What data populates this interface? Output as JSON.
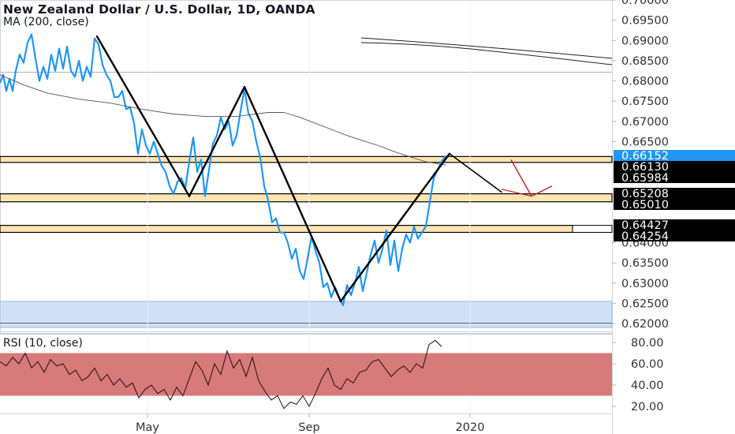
{
  "header": {
    "title": "New Zealand Dollar / U.S. Dollar, 1D, OANDA",
    "subtitle": "MA (200, close)"
  },
  "rsi": {
    "label": "RSI (10, close)"
  },
  "colors": {
    "price_line": "#2196f3",
    "ma_line": "#555555",
    "drawing_line": "#000000",
    "projection_red": "#b22222",
    "sr_zone_fill": "#ffe5b4",
    "demand_zone_fill": "#cfe0f7",
    "rsi_band_fill": "#d67a7a",
    "current_price_bg": "#2196f3",
    "label_black_bg": "#000000"
  },
  "chart_data": [
    {
      "type": "line",
      "panel": "price",
      "title": "New Zealand Dollar / U.S. Dollar, 1D, OANDA",
      "ylim": [
        0.6185,
        0.7005
      ],
      "y_ticks": [
        "0.70000",
        "0.69500",
        "0.69000",
        "0.68500",
        "0.68000",
        "0.67500",
        "0.67000",
        "0.66500",
        "0.64000",
        "0.63500",
        "0.63000",
        "0.62500",
        "0.62000"
      ],
      "x_ticks": [
        "May",
        "Sep",
        "2020"
      ],
      "series": [
        {
          "key": "price",
          "x": [
            0,
            4,
            8,
            12,
            16,
            20,
            25,
            30,
            35,
            40,
            45,
            50,
            55,
            60,
            65,
            70,
            75,
            80,
            85,
            90,
            95,
            100,
            105,
            110,
            115,
            120,
            125,
            130,
            135,
            140,
            145,
            150,
            155,
            160,
            165,
            170,
            175,
            180,
            185,
            190,
            195,
            200,
            205,
            210,
            215,
            220,
            225,
            230,
            235,
            240,
            245,
            250,
            255,
            260,
            265,
            270,
            275,
            280,
            285,
            290,
            295,
            300,
            305,
            310,
            315,
            320,
            325,
            330,
            335,
            340,
            345,
            350,
            355,
            360,
            365,
            370,
            375,
            380,
            385,
            390,
            395,
            400,
            405,
            410,
            415,
            420,
            425,
            430,
            435,
            440,
            445,
            450,
            455,
            460,
            465,
            470,
            475,
            480,
            485,
            490,
            495,
            500,
            505,
            510,
            515,
            520,
            525,
            530,
            535,
            540,
            545,
            550,
            555,
            560,
            565
          ],
          "values": [
            0.6795,
            0.6815,
            0.6775,
            0.6805,
            0.6775,
            0.6825,
            0.6865,
            0.6845,
            0.6895,
            0.6915,
            0.6855,
            0.68,
            0.6835,
            0.6805,
            0.6865,
            0.6825,
            0.688,
            0.683,
            0.6885,
            0.6825,
            0.681,
            0.685,
            0.68,
            0.6835,
            0.681,
            0.6905,
            0.689,
            0.684,
            0.6815,
            0.68,
            0.676,
            0.676,
            0.6775,
            0.673,
            0.6735,
            0.6695,
            0.662,
            0.668,
            0.664,
            0.662,
            0.665,
            0.662,
            0.659,
            0.6575,
            0.654,
            0.652,
            0.655,
            0.656,
            0.6535,
            0.66,
            0.666,
            0.6575,
            0.6605,
            0.6515,
            0.658,
            0.6645,
            0.6665,
            0.671,
            0.668,
            0.67,
            0.664,
            0.6665,
            0.6725,
            0.678,
            0.672,
            0.67,
            0.665,
            0.661,
            0.654,
            0.6505,
            0.645,
            0.646,
            0.6425,
            0.6425,
            0.64,
            0.636,
            0.6385,
            0.633,
            0.631,
            0.636,
            0.6415,
            0.638,
            0.635,
            0.629,
            0.63,
            0.6265,
            0.629,
            0.6265,
            0.6245,
            0.6295,
            0.627,
            0.63,
            0.634,
            0.628,
            0.6325,
            0.637,
            0.6405,
            0.635,
            0.6385,
            0.643,
            0.6345,
            0.6405,
            0.633,
            0.6385,
            0.642,
            0.64,
            0.644,
            0.641,
            0.6425,
            0.644,
            0.65,
            0.656,
            0.658,
            0.66,
            0.6615
          ]
        },
        {
          "key": "ma200",
          "name": "MA (200, close)",
          "x": [
            0,
            30,
            60,
            100,
            140,
            180,
            220,
            260,
            300,
            340,
            360,
            380,
            400,
            420,
            440,
            460,
            480,
            500,
            520,
            540,
            565
          ],
          "values": [
            0.6815,
            0.679,
            0.677,
            0.6755,
            0.6745,
            0.673,
            0.6718,
            0.6712,
            0.6712,
            0.6722,
            0.6722,
            0.671,
            0.6695,
            0.668,
            0.6665,
            0.6652,
            0.664,
            0.6625,
            0.6612,
            0.66,
            0.6592
          ]
        }
      ]
    },
    {
      "type": "line",
      "panel": "rsi",
      "title": "RSI (10, close)",
      "ylim": [
        13,
        85
      ],
      "y_ticks": [
        "80.00",
        "60.00",
        "40.00",
        "20.00"
      ],
      "series": [
        {
          "key": "rsi",
          "x": [
            0,
            8,
            16,
            24,
            32,
            40,
            48,
            56,
            64,
            72,
            80,
            88,
            96,
            104,
            112,
            120,
            128,
            136,
            144,
            152,
            160,
            168,
            176,
            184,
            192,
            200,
            208,
            216,
            224,
            232,
            240,
            248,
            256,
            264,
            272,
            280,
            288,
            296,
            304,
            312,
            320,
            328,
            336,
            344,
            352,
            360,
            368,
            376,
            384,
            392,
            400,
            408,
            416,
            424,
            432,
            440,
            448,
            456,
            464,
            472,
            480,
            488,
            496,
            504,
            512,
            520,
            528,
            536,
            544,
            552,
            560
          ],
          "values": [
            62,
            58,
            66,
            60,
            70,
            56,
            62,
            52,
            64,
            58,
            60,
            50,
            54,
            44,
            48,
            56,
            44,
            50,
            40,
            46,
            38,
            42,
            28,
            36,
            40,
            32,
            36,
            26,
            38,
            30,
            46,
            62,
            54,
            40,
            60,
            50,
            72,
            56,
            64,
            48,
            66,
            44,
            34,
            26,
            30,
            18,
            24,
            22,
            30,
            20,
            32,
            46,
            56,
            40,
            36,
            46,
            42,
            52,
            54,
            62,
            64,
            56,
            48,
            54,
            58,
            52,
            60,
            56,
            78,
            82,
            76
          ]
        }
      ]
    }
  ],
  "price_labels": [
    {
      "text": "0.66152",
      "price": 0.66152,
      "style": "blue"
    },
    {
      "text": "0.66130",
      "price": 0.6613,
      "style": "black"
    },
    {
      "text": "0.65984",
      "price": 0.65984,
      "style": "black"
    },
    {
      "text": "0.65208",
      "price": 0.65208,
      "style": "black"
    },
    {
      "text": "0.65010",
      "price": 0.6501,
      "style": "black"
    },
    {
      "text": "0.64427",
      "price": 0.64427,
      "style": "black"
    },
    {
      "text": "0.64254",
      "price": 0.64254,
      "style": "black"
    }
  ],
  "zones": [
    {
      "name": "sr-zone-upper",
      "from": 0.6613,
      "to": 0.65984
    },
    {
      "name": "sr-zone-middle",
      "from": 0.65208,
      "to": 0.6501
    },
    {
      "name": "sr-zone-lower",
      "from": 0.64427,
      "to": 0.64254
    },
    {
      "name": "demand-zone",
      "from": 0.6255,
      "to": 0.619
    }
  ],
  "rsi_band": {
    "from": 70,
    "to": 30
  }
}
